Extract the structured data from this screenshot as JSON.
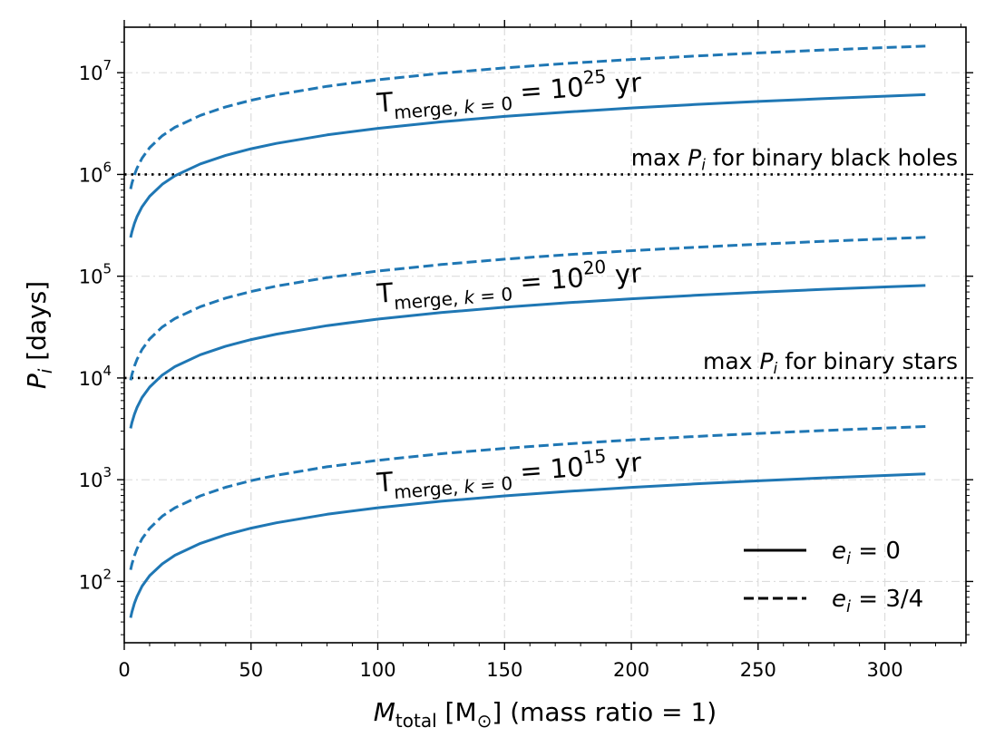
{
  "chart_data": {
    "type": "line",
    "xlabel": {
      "symbol": "M",
      "sub": "total",
      "rest": " [M",
      "sun": "⊙",
      "tail": "] (mass ratio = 1)"
    },
    "ylabel": {
      "symbol": "P",
      "sub": "i",
      "rest": " [days]"
    },
    "xlim": [
      0,
      332
    ],
    "ylim": [
      25,
      28000000
    ],
    "yscale": "log",
    "grid": true,
    "x_ticks": [
      0,
      50,
      100,
      150,
      200,
      250,
      300
    ],
    "x_tick_labels": [
      "0",
      "50",
      "100",
      "150",
      "200",
      "250",
      "300"
    ],
    "y_ticks": [
      {
        "value": 100,
        "base": "10",
        "exp": "2"
      },
      {
        "value": 1000,
        "base": "10",
        "exp": "3"
      },
      {
        "value": 10000,
        "base": "10",
        "exp": "4"
      },
      {
        "value": 100000,
        "base": "10",
        "exp": "5"
      },
      {
        "value": 1000000,
        "base": "10",
        "exp": "6"
      },
      {
        "value": 10000000,
        "base": "10",
        "exp": "7"
      }
    ],
    "color": "#1f77b4",
    "series": [
      {
        "style": "solid",
        "x": [
          2.5,
          3,
          4,
          5,
          7,
          10,
          15,
          20,
          30,
          40,
          50,
          60,
          80,
          100,
          125,
          150,
          175,
          200,
          225,
          250,
          275,
          300,
          316
        ],
        "values": [
          44,
          50,
          61,
          71,
          90,
          114,
          149,
          181,
          237,
          288,
          334,
          377,
          457,
          530,
          615,
          694,
          769,
          841,
          909,
          975,
          1039,
          1100,
          1140
        ]
      },
      {
        "style": "dashed",
        "x": [
          2.5,
          3,
          4,
          5,
          7,
          10,
          15,
          20,
          30,
          40,
          50,
          60,
          80,
          100,
          125,
          150,
          175,
          200,
          225,
          250,
          275,
          300,
          316
        ],
        "values": [
          130,
          148,
          179,
          209,
          263,
          333,
          438,
          530,
          694,
          843,
          980,
          1106,
          1340,
          1550,
          1800,
          2034,
          2253,
          2461,
          2661,
          2853,
          3039,
          3220,
          3334
        ]
      },
      {
        "style": "solid",
        "x": [
          2.5,
          3,
          4,
          5,
          7,
          10,
          15,
          20,
          30,
          40,
          50,
          60,
          80,
          100,
          125,
          150,
          175,
          200,
          225,
          250,
          275,
          300,
          316
        ],
        "values": [
          3200,
          3629,
          4400,
          5120,
          6420,
          8140,
          10680,
          12930,
          16920,
          20530,
          23840,
          26930,
          32650,
          37870,
          43900,
          49560,
          54910,
          60000,
          64860,
          69530,
          74050,
          78420,
          81140
        ]
      },
      {
        "style": "dashed",
        "x": [
          2.5,
          3,
          4,
          5,
          7,
          10,
          15,
          20,
          30,
          40,
          50,
          60,
          80,
          100,
          125,
          150,
          175,
          200,
          225,
          250,
          275,
          300,
          316
        ],
        "values": [
          9500,
          10770,
          13060,
          15190,
          19060,
          24160,
          31700,
          38370,
          50220,
          60930,
          70750,
          79930,
          96900,
          112400,
          130300,
          147100,
          163000,
          178100,
          192500,
          206400,
          219800,
          232800,
          240800
        ]
      },
      {
        "style": "solid",
        "x": [
          2.5,
          3,
          4,
          5,
          7,
          10,
          15,
          20,
          30,
          40,
          50,
          60,
          80,
          100,
          125,
          150,
          175,
          200,
          225,
          250,
          275,
          300,
          316
        ],
        "values": [
          240000,
          272100,
          329900,
          383800,
          481500,
          610400,
          800900,
          969500,
          1268800,
          1539300,
          1787600,
          2019300,
          2448200,
          2840000,
          3292000,
          3716000,
          4117000,
          4499000,
          4863000,
          5213000,
          5551000,
          5880000,
          6083000
        ]
      },
      {
        "style": "dashed",
        "x": [
          2.5,
          3,
          4,
          5,
          7,
          10,
          15,
          20,
          30,
          40,
          50,
          60,
          80,
          100,
          125,
          150,
          175,
          200,
          225,
          250,
          275,
          300,
          316
        ],
        "values": [
          720000,
          816400,
          989800,
          1151300,
          1444500,
          1831200,
          2402600,
          2908600,
          3806500,
          4618000,
          5362900,
          6058000,
          7344700,
          8520000,
          9876000,
          11148000,
          12352000,
          13497000,
          14590000,
          15640000,
          16653000,
          17640000,
          18250000
        ]
      }
    ],
    "hlines": [
      {
        "value": 1000000,
        "style": "dotted",
        "label": {
          "pre": "max ",
          "sym": "P",
          "sub": "i",
          "post": " for binary black holes"
        }
      },
      {
        "value": 10000,
        "style": "dotted",
        "label": {
          "pre": "max ",
          "sym": "P",
          "sub": "i",
          "post": " for binary stars"
        }
      }
    ],
    "annotations": [
      {
        "x": 100,
        "y": 4100000,
        "rotate": -4.5,
        "main": "T",
        "sub": "merge, ",
        "sub_sym": "k",
        "sub_tail": " = 0",
        "eq": " = 10",
        "exp": "25",
        "unit": " yr"
      },
      {
        "x": 100,
        "y": 55000,
        "rotate": -4.5,
        "main": "T",
        "sub": "merge, ",
        "sub_sym": "k",
        "sub_tail": " = 0",
        "eq": " = 10",
        "exp": "20",
        "unit": " yr"
      },
      {
        "x": 100,
        "y": 760,
        "rotate": -4.5,
        "main": "T",
        "sub": "merge, ",
        "sub_sym": "k",
        "sub_tail": " = 0",
        "eq": " = 10",
        "exp": "15",
        "unit": " yr"
      }
    ],
    "legend": {
      "position": "lower-right",
      "entries": [
        {
          "style": "solid",
          "sym": "e",
          "sub": "i",
          "eq": " = 0"
        },
        {
          "style": "dashed",
          "sym": "e",
          "sub": "i",
          "eq": " = 3/4"
        }
      ]
    }
  }
}
